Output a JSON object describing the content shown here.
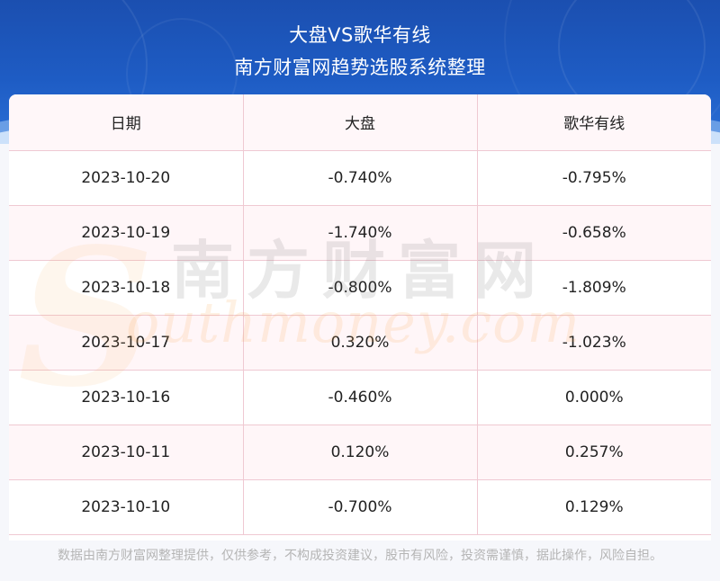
{
  "header": {
    "title_line1": "大盘VS歌华有线",
    "title_line2": "南方财富网趋势选股系统整理"
  },
  "table": {
    "columns": [
      "日期",
      "大盘",
      "歌华有线"
    ],
    "rows": [
      [
        "2023-10-20",
        "-0.740%",
        "-0.795%"
      ],
      [
        "2023-10-19",
        "-1.740%",
        "-0.658%"
      ],
      [
        "2023-10-18",
        "-0.800%",
        "-1.809%"
      ],
      [
        "2023-10-17",
        "0.320%",
        "-1.023%"
      ],
      [
        "2023-10-16",
        "-0.460%",
        "0.000%"
      ],
      [
        "2023-10-11",
        "0.120%",
        "0.257%"
      ],
      [
        "2023-10-10",
        "-0.700%",
        "0.129%"
      ]
    ]
  },
  "watermark": {
    "cn": "南方财富网",
    "en": "outhmoney.com",
    "s": "S"
  },
  "footer": {
    "disclaimer": "数据由南方财富网整理提供，仅供参考，不构成投资建议，股市有风险，投资需谨慎，据此操作，风险自担。"
  },
  "colors": {
    "header_blue": "#1e5cc4",
    "border_pink": "#efc9d2",
    "watermark_orange": "#f7a550"
  }
}
